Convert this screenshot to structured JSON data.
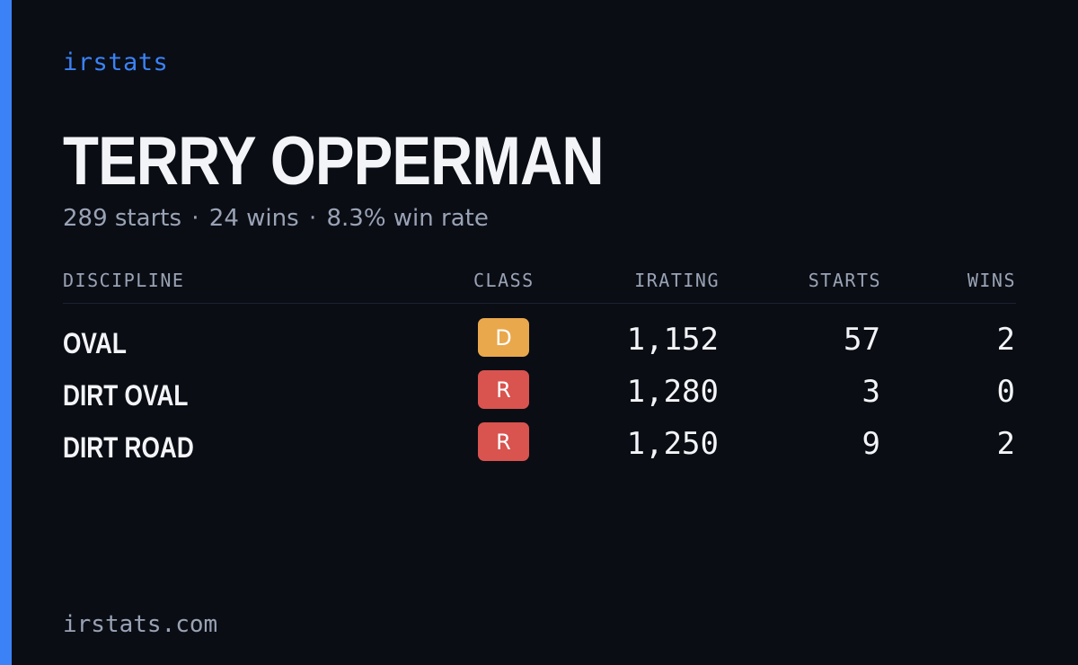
{
  "brand": "irstats",
  "driver": {
    "name": "TERRY OPPERMAN",
    "starts_text": "289 starts",
    "wins_text": "24 wins",
    "win_rate_text": "8.3% win rate",
    "separator": "·"
  },
  "table": {
    "headers": {
      "discipline": "DISCIPLINE",
      "class": "CLASS",
      "irating": "IRATING",
      "starts": "STARTS",
      "wins": "WINS"
    },
    "rows": [
      {
        "discipline": "OVAL",
        "class": "D",
        "class_color": "#e9a84c",
        "irating": "1,152",
        "starts": "57",
        "wins": "2"
      },
      {
        "discipline": "DIRT OVAL",
        "class": "R",
        "class_color": "#d9534f",
        "irating": "1,280",
        "starts": "3",
        "wins": "0"
      },
      {
        "discipline": "DIRT ROAD",
        "class": "R",
        "class_color": "#d9534f",
        "irating": "1,250",
        "starts": "9",
        "wins": "2"
      }
    ]
  },
  "footer": {
    "site": "irstats.com"
  },
  "colors": {
    "accent": "#3b82f6",
    "background": "#0a0d14",
    "text": "#f3f4f8",
    "muted": "#9aa3b5"
  }
}
